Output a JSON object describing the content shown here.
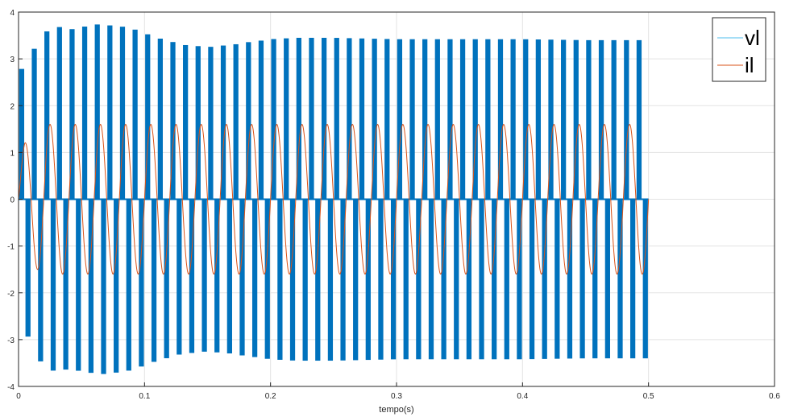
{
  "chart_data": {
    "type": "line",
    "title": "",
    "xlabel": "tempo(s)",
    "ylabel": "",
    "xlim": [
      0,
      0.6
    ],
    "ylim": [
      -4,
      4
    ],
    "x_ticks": [
      "0",
      "0.1",
      "0.2",
      "0.3",
      "0.4",
      "0.5",
      "0.6"
    ],
    "y_ticks": [
      "-4",
      "-3",
      "-2",
      "-1",
      "0",
      "1",
      "2",
      "3",
      "4"
    ],
    "grid": true,
    "legend_position": "top-right",
    "series": [
      {
        "name": "vl",
        "color": "#0072BD",
        "description_type": "pwm_bursts",
        "period": 0.01,
        "duty": 0.5,
        "t_start": 0,
        "t_end": 0.5,
        "envelope_x": [
          0,
          0.005,
          0.01,
          0.015,
          0.02,
          0.03,
          0.04,
          0.05,
          0.06,
          0.065,
          0.07,
          0.08,
          0.09,
          0.1,
          0.11,
          0.12,
          0.13,
          0.14,
          0.15,
          0.16,
          0.17,
          0.18,
          0.19,
          0.2,
          0.22,
          0.25,
          0.3,
          0.35,
          0.4,
          0.45,
          0.5
        ],
        "envelope_y": [
          2.75,
          2.82,
          3.05,
          3.38,
          3.55,
          3.7,
          3.62,
          3.68,
          3.72,
          3.75,
          3.72,
          3.7,
          3.65,
          3.55,
          3.45,
          3.38,
          3.3,
          3.28,
          3.25,
          3.28,
          3.3,
          3.35,
          3.38,
          3.42,
          3.45,
          3.45,
          3.42,
          3.42,
          3.42,
          3.4,
          3.4
        ]
      },
      {
        "name": "il",
        "color": "#D95319",
        "description_type": "sine",
        "frequency_hz": 50,
        "t_start": 0,
        "t_end": 0.5,
        "envelope_x": [
          0,
          0.005,
          0.01,
          0.02,
          0.03,
          0.05,
          0.1,
          0.5
        ],
        "envelope_y": [
          0.8,
          1.2,
          1.4,
          1.6,
          1.6,
          1.6,
          1.6,
          1.6
        ]
      }
    ]
  }
}
